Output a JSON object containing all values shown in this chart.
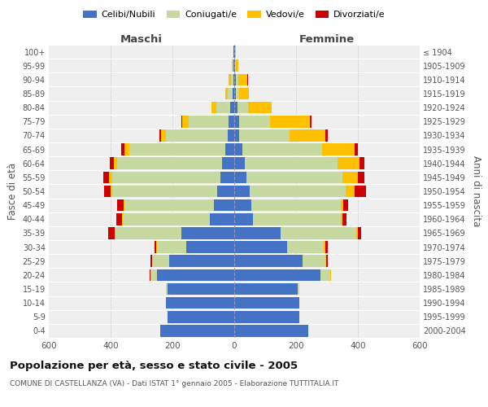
{
  "age_groups": [
    "0-4",
    "5-9",
    "10-14",
    "15-19",
    "20-24",
    "25-29",
    "30-34",
    "35-39",
    "40-44",
    "45-49",
    "50-54",
    "55-59",
    "60-64",
    "65-69",
    "70-74",
    "75-79",
    "80-84",
    "85-89",
    "90-94",
    "95-99",
    "100+"
  ],
  "birth_years": [
    "2000-2004",
    "1995-1999",
    "1990-1994",
    "1985-1989",
    "1980-1984",
    "1975-1979",
    "1970-1974",
    "1965-1969",
    "1960-1964",
    "1955-1959",
    "1950-1954",
    "1945-1949",
    "1940-1944",
    "1935-1939",
    "1930-1934",
    "1925-1929",
    "1920-1924",
    "1915-1919",
    "1910-1914",
    "1905-1909",
    "≤ 1904"
  ],
  "maschi": {
    "celibi": [
      240,
      215,
      220,
      215,
      250,
      210,
      155,
      170,
      80,
      65,
      55,
      45,
      40,
      30,
      20,
      18,
      12,
      5,
      3,
      2,
      2
    ],
    "coniugati": [
      0,
      0,
      0,
      5,
      20,
      55,
      95,
      215,
      280,
      290,
      340,
      350,
      340,
      310,
      200,
      130,
      45,
      15,
      8,
      3,
      1
    ],
    "vedovi": [
      0,
      0,
      0,
      0,
      0,
      2,
      2,
      2,
      2,
      3,
      5,
      10,
      10,
      15,
      18,
      20,
      18,
      10,
      8,
      2,
      0
    ],
    "divorziati": [
      0,
      0,
      0,
      0,
      5,
      5,
      5,
      20,
      20,
      20,
      20,
      20,
      12,
      12,
      3,
      2,
      0,
      0,
      0,
      0,
      0
    ]
  },
  "femmine": {
    "nubili": [
      240,
      210,
      210,
      205,
      280,
      220,
      170,
      150,
      60,
      55,
      50,
      40,
      35,
      25,
      15,
      15,
      10,
      5,
      5,
      3,
      2
    ],
    "coniugate": [
      0,
      0,
      0,
      5,
      30,
      75,
      120,
      245,
      285,
      290,
      310,
      310,
      300,
      260,
      165,
      100,
      35,
      12,
      8,
      3,
      1
    ],
    "vedove": [
      0,
      0,
      0,
      0,
      2,
      3,
      5,
      5,
      5,
      8,
      30,
      50,
      70,
      105,
      115,
      130,
      75,
      30,
      30,
      8,
      1
    ],
    "divorziate": [
      0,
      0,
      0,
      0,
      2,
      5,
      8,
      10,
      12,
      15,
      35,
      20,
      15,
      10,
      8,
      5,
      1,
      1,
      1,
      0,
      0
    ]
  },
  "colors": {
    "celibi": "#4472c4",
    "coniugati": "#c5d9a0",
    "vedovi": "#ffc000",
    "divorziati": "#cc0000"
  },
  "legend_labels": [
    "Celibi/Nubili",
    "Coniugati/e",
    "Vedovi/e",
    "Divorziati/e"
  ],
  "xlim": 600,
  "title": "Popolazione per età, sesso e stato civile - 2005",
  "subtitle": "COMUNE DI CASTELLANZA (VA) - Dati ISTAT 1° gennaio 2005 - Elaborazione TUTTITALIA.IT",
  "ylabel_left": "Fasce di età",
  "ylabel_right": "Anni di nascita",
  "xlabel_maschi": "Maschi",
  "xlabel_femmine": "Femmine",
  "bg_color": "#efefef"
}
